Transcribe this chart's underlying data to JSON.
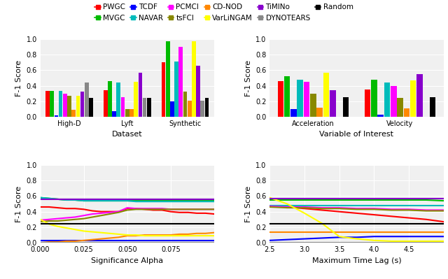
{
  "algorithms": [
    "PWGC",
    "MVGC",
    "TCDF",
    "NAVAR",
    "PCMCI",
    "tsFCI",
    "CD-NOD",
    "VarLiNGAM",
    "TiMINo",
    "DYNOTEARS",
    "Random"
  ],
  "colors": [
    "#ff0000",
    "#00bb00",
    "#0000ff",
    "#00bbbb",
    "#ff00ff",
    "#888800",
    "#ff8800",
    "#ffff00",
    "#8800cc",
    "#888888",
    "#000000"
  ],
  "bar_width": 0.075,
  "bar_datasets": {
    "High-D": [
      0.33,
      0.33,
      0.02,
      0.33,
      0.3,
      0.27,
      0.09,
      0.27,
      0.32,
      0.44,
      0.24
    ],
    "Lyft": [
      0.34,
      0.46,
      0.07,
      0.44,
      0.25,
      0.1,
      0.1,
      0.45,
      0.57,
      0.24,
      0.24
    ],
    "Synthetic": [
      0.7,
      0.97,
      0.2,
      0.71,
      0.9,
      0.32,
      0.21,
      0.97,
      0.66,
      0.21,
      0.24
    ],
    "Acceleration": [
      0.46,
      0.52,
      0.1,
      0.48,
      0.45,
      0.3,
      0.12,
      0.57,
      0.34,
      0.0,
      0.25
    ],
    "Velocity": [
      0.35,
      0.48,
      0.03,
      0.44,
      0.4,
      0.24,
      0.11,
      0.47,
      0.55,
      0.0,
      0.25
    ]
  },
  "line_alpha_data": {
    "x": [
      0.0,
      0.005,
      0.01,
      0.015,
      0.02,
      0.025,
      0.03,
      0.035,
      0.04,
      0.045,
      0.05,
      0.055,
      0.06,
      0.065,
      0.07,
      0.075,
      0.08,
      0.085,
      0.09,
      0.095,
      0.1
    ],
    "PWGC": [
      0.46,
      0.46,
      0.45,
      0.44,
      0.44,
      0.43,
      0.41,
      0.4,
      0.4,
      0.4,
      0.44,
      0.44,
      0.43,
      0.42,
      0.42,
      0.4,
      0.39,
      0.39,
      0.38,
      0.38,
      0.37
    ],
    "MVGC": [
      0.58,
      0.57,
      0.56,
      0.55,
      0.55,
      0.54,
      0.54,
      0.54,
      0.54,
      0.54,
      0.54,
      0.54,
      0.54,
      0.54,
      0.54,
      0.54,
      0.54,
      0.54,
      0.54,
      0.54,
      0.54
    ],
    "TCDF": [
      0.03,
      0.03,
      0.03,
      0.03,
      0.03,
      0.03,
      0.03,
      0.03,
      0.03,
      0.03,
      0.03,
      0.03,
      0.03,
      0.03,
      0.03,
      0.03,
      0.03,
      0.03,
      0.03,
      0.03,
      0.03
    ],
    "NAVAR": [
      0.58,
      0.57,
      0.56,
      0.55,
      0.55,
      0.54,
      0.54,
      0.54,
      0.54,
      0.54,
      0.54,
      0.53,
      0.53,
      0.53,
      0.53,
      0.53,
      0.53,
      0.53,
      0.53,
      0.53,
      0.53
    ],
    "PCMCI": [
      0.29,
      0.3,
      0.31,
      0.32,
      0.33,
      0.35,
      0.37,
      0.38,
      0.39,
      0.4,
      0.45,
      0.44,
      0.44,
      0.44,
      0.44,
      0.43,
      0.43,
      0.43,
      0.43,
      0.43,
      0.43
    ],
    "tsFCI": [
      0.27,
      0.28,
      0.28,
      0.29,
      0.3,
      0.31,
      0.33,
      0.35,
      0.37,
      0.39,
      0.42,
      0.43,
      0.43,
      0.43,
      0.43,
      0.43,
      0.43,
      0.43,
      0.43,
      0.43,
      0.43
    ],
    "CD-NOD": [
      0.0,
      0.01,
      0.01,
      0.02,
      0.02,
      0.03,
      0.04,
      0.05,
      0.06,
      0.07,
      0.09,
      0.09,
      0.1,
      0.1,
      0.1,
      0.1,
      0.11,
      0.11,
      0.12,
      0.12,
      0.13
    ],
    "VarLiNGAM": [
      0.3,
      0.24,
      0.21,
      0.19,
      0.17,
      0.15,
      0.14,
      0.13,
      0.12,
      0.11,
      0.1,
      0.1,
      0.09,
      0.09,
      0.09,
      0.09,
      0.09,
      0.09,
      0.09,
      0.09,
      0.09
    ],
    "TiMINo": [
      0.56,
      0.56,
      0.56,
      0.56,
      0.56,
      0.56,
      0.56,
      0.56,
      0.56,
      0.56,
      0.56,
      0.56,
      0.56,
      0.56,
      0.56,
      0.56,
      0.56,
      0.56,
      0.56,
      0.56,
      0.56
    ],
    "DYNOTEARS": [
      0.0,
      0.0,
      0.0,
      0.0,
      0.0,
      0.0,
      0.0,
      0.0,
      0.0,
      0.0,
      0.0,
      0.0,
      0.0,
      0.0,
      0.0,
      0.0,
      0.0,
      0.0,
      0.0,
      0.0,
      0.0
    ],
    "Random": [
      0.24,
      0.24,
      0.24,
      0.24,
      0.24,
      0.24,
      0.24,
      0.24,
      0.24,
      0.24,
      0.24,
      0.24,
      0.24,
      0.24,
      0.24,
      0.24,
      0.24,
      0.24,
      0.24,
      0.24,
      0.24
    ]
  },
  "line_lag_data": {
    "x": [
      2.5,
      2.75,
      3.0,
      3.25,
      3.5,
      3.75,
      4.0,
      4.25,
      4.5,
      4.75,
      5.0
    ],
    "PWGC": [
      0.47,
      0.46,
      0.44,
      0.42,
      0.4,
      0.38,
      0.36,
      0.34,
      0.32,
      0.3,
      0.27
    ],
    "MVGC": [
      0.55,
      0.55,
      0.55,
      0.55,
      0.55,
      0.55,
      0.55,
      0.55,
      0.55,
      0.55,
      0.54
    ],
    "TCDF": [
      0.03,
      0.04,
      0.05,
      0.06,
      0.07,
      0.07,
      0.08,
      0.08,
      0.08,
      0.08,
      0.08
    ],
    "NAVAR": [
      0.48,
      0.48,
      0.48,
      0.48,
      0.48,
      0.48,
      0.48,
      0.48,
      0.48,
      0.48,
      0.48
    ],
    "PCMCI": [
      0.47,
      0.46,
      0.46,
      0.45,
      0.45,
      0.44,
      0.44,
      0.43,
      0.43,
      0.42,
      0.42
    ],
    "tsFCI": [
      0.46,
      0.45,
      0.45,
      0.44,
      0.44,
      0.43,
      0.43,
      0.42,
      0.42,
      0.41,
      0.41
    ],
    "CD-NOD": [
      0.14,
      0.14,
      0.14,
      0.14,
      0.14,
      0.14,
      0.14,
      0.14,
      0.14,
      0.14,
      0.14
    ],
    "VarLiNGAM": [
      0.58,
      0.5,
      0.38,
      0.25,
      0.08,
      0.05,
      0.03,
      0.02,
      0.02,
      0.02,
      0.02
    ],
    "TiMINo": [
      0.57,
      0.57,
      0.57,
      0.57,
      0.57,
      0.57,
      0.57,
      0.57,
      0.57,
      0.57,
      0.57
    ],
    "DYNOTEARS": [
      0.0,
      0.0,
      0.0,
      0.0,
      0.0,
      0.0,
      0.0,
      0.0,
      0.0,
      0.0,
      0.0
    ],
    "Random": [
      0.24,
      0.24,
      0.24,
      0.24,
      0.24,
      0.24,
      0.24,
      0.24,
      0.24,
      0.24,
      0.24
    ]
  },
  "ax1_xlabel": "Dataset",
  "ax2_xlabel": "Variable of Interest",
  "ax3_xlabel": "Significance Alpha",
  "ax4_xlabel": "Maximum Time Lag (s)",
  "ylabel": "F-1 Score",
  "ylim": [
    0.0,
    1.0
  ],
  "ax1_xticks": [
    "High-D",
    "Lyft",
    "Synthetic"
  ],
  "ax2_xticks": [
    "Acceleration",
    "Velocity"
  ],
  "background_color": "#f0f0f0"
}
